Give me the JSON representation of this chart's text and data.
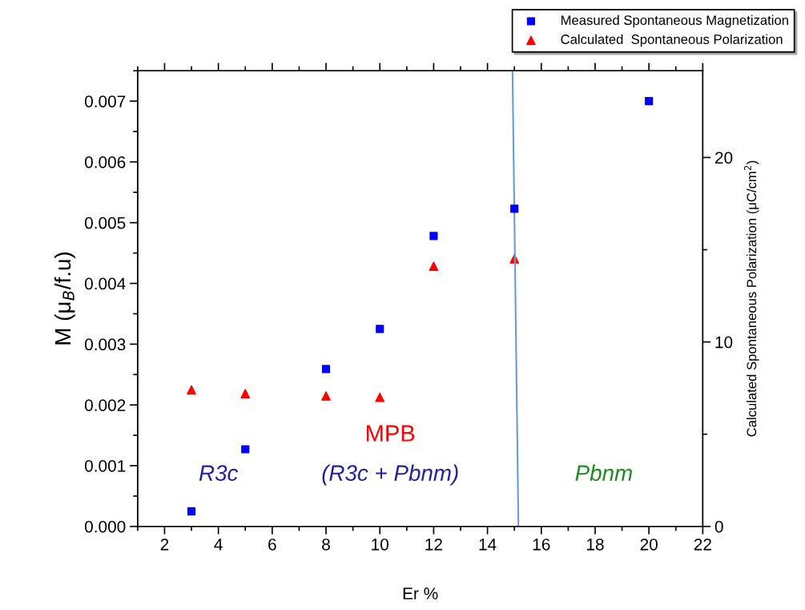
{
  "chart_data": {
    "type": "scatter",
    "xlabel": "Er %",
    "ylabel": "M (μ$_{B}$/f.u)",
    "y2label": "Calculated Spontaneous Polarization (μC/cm$^{2}$)",
    "xlim": [
      1,
      22
    ],
    "xticks": [
      2,
      4,
      6,
      8,
      10,
      12,
      14,
      16,
      18,
      20,
      22
    ],
    "ylim": [
      0,
      0.0075
    ],
    "yticks": [
      {
        "value": 0,
        "label": "0.000"
      },
      {
        "value": 0.001,
        "label": "0.001"
      },
      {
        "value": 0.002,
        "label": "0.002"
      },
      {
        "value": 0.003,
        "label": "0.003"
      },
      {
        "value": 0.004,
        "label": "0.004"
      },
      {
        "value": 0.005,
        "label": "0.005"
      },
      {
        "value": 0.006,
        "label": "0.006"
      },
      {
        "value": 0.007,
        "label": "0.007"
      }
    ],
    "y2lim": [
      0,
      24.7
    ],
    "y2ticks": [
      0,
      10,
      20
    ],
    "legend": "top right",
    "grid": false,
    "series": [
      {
        "name": "Measured Spontaneous Magnetization",
        "marker": "square",
        "color": "#0000ff",
        "x": [
          3,
          5,
          8,
          10,
          12,
          15,
          20
        ],
        "values": [
          0.00025,
          0.00127,
          0.00259,
          0.00325,
          0.00478,
          0.00523,
          0.007
        ]
      },
      {
        "name": "Calculated  Spontaneous Polarization",
        "marker": "triangle",
        "axis": "y2",
        "color": "#ff0000",
        "x": [
          3,
          5,
          8,
          10,
          12,
          15
        ],
        "values": [
          7.4,
          7.2,
          7.07,
          7.0,
          14.1,
          14.5
        ]
      },
      {
        "type": "line",
        "marker": "none",
        "color": "#6a9bd1",
        "x": [
          14.93,
          15.15
        ],
        "values": [
          0.0075,
          0
        ]
      }
    ],
    "annotations": [
      "R3c",
      "MPB",
      "(R3c + Pbnm)",
      "Pbnm"
    ]
  }
}
